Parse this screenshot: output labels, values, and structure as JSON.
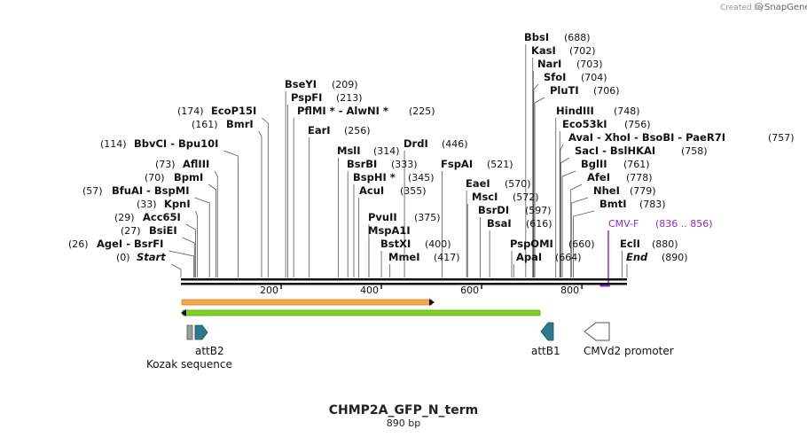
{
  "credit": {
    "text": "Created by",
    "brand": "SnapGene"
  },
  "title": "CHMP2A_GFP_N_term",
  "length_label": "890 bp",
  "total_bp": 890,
  "ticks": [
    "200",
    "400",
    "600",
    "800"
  ],
  "tick_values": [
    200,
    400,
    600,
    800
  ],
  "colors": {
    "primer": "#8e2ad0",
    "orange_feature": "#f7a74b",
    "green_feature": "#7ed321",
    "att": "#2b7a90"
  },
  "sites": [
    {
      "id": "bbsi",
      "name": "BbsI",
      "pos": "(688)",
      "bp": 688
    },
    {
      "id": "kasi",
      "name": "KasI",
      "pos": "(702)",
      "bp": 702
    },
    {
      "id": "nari",
      "name": "NarI",
      "pos": "(703)",
      "bp": 703
    },
    {
      "id": "sfoi",
      "name": "SfoI",
      "pos": "(704)",
      "bp": 704
    },
    {
      "id": "plutI",
      "name": "PluTI",
      "pos": "(706)",
      "bp": 706
    },
    {
      "id": "bseyi",
      "name": "BseYI",
      "pos": "(209)",
      "bp": 209
    },
    {
      "id": "pspfi",
      "name": "PspFI",
      "pos": "(213)",
      "bp": 213
    },
    {
      "id": "pflmi",
      "name": "PflMI *  -  AlwNI *",
      "pos": "(225)",
      "bp": 225
    },
    {
      "id": "hindiii",
      "name": "HindIII",
      "pos": "(748)",
      "bp": 748
    },
    {
      "id": "ecop15i",
      "name": "EcoP15I",
      "pos": "(174)",
      "bp": 174
    },
    {
      "id": "eco53ki",
      "name": "Eco53kI",
      "pos": "(756)",
      "bp": 756
    },
    {
      "id": "bmri",
      "name": "BmrI",
      "pos": "(161)",
      "bp": 161
    },
    {
      "id": "eari",
      "name": "EarI",
      "pos": "(256)",
      "bp": 256
    },
    {
      "id": "avai",
      "name": "AvaI  -  XhoI  -  BsoBI  -  PaeR7I",
      "pos": "(757)",
      "bp": 757
    },
    {
      "id": "bbvci",
      "name": "BbvCI  -  Bpu10I",
      "pos": "(114)",
      "bp": 114
    },
    {
      "id": "drdi",
      "name": "DrdI",
      "pos": "(446)",
      "bp": 446
    },
    {
      "id": "msli",
      "name": "MslI",
      "pos": "(314)",
      "bp": 314
    },
    {
      "id": "saci",
      "name": "SacI  -  BslHKAI",
      "pos": "(758)",
      "bp": 758
    },
    {
      "id": "afliii",
      "name": "AflIII",
      "pos": "(73)",
      "bp": 73
    },
    {
      "id": "bsrbi",
      "name": "BsrBI",
      "pos": "(333)",
      "bp": 333
    },
    {
      "id": "fspai",
      "name": "FspAI",
      "pos": "(521)",
      "bp": 521
    },
    {
      "id": "bglii",
      "name": "BglII",
      "pos": "(761)",
      "bp": 761
    },
    {
      "id": "bpmi",
      "name": "BpmI",
      "pos": "(70)",
      "bp": 70
    },
    {
      "id": "bsphi",
      "name": "BspHI *",
      "pos": "(345)",
      "bp": 345
    },
    {
      "id": "afei",
      "name": "AfeI",
      "pos": "(778)",
      "bp": 778
    },
    {
      "id": "bfuai",
      "name": "BfuAI  -  BspMI",
      "pos": "(57)",
      "bp": 57
    },
    {
      "id": "acui",
      "name": "AcuI",
      "pos": "(355)",
      "bp": 355
    },
    {
      "id": "eaei",
      "name": "EaeI",
      "pos": "(570)",
      "bp": 570
    },
    {
      "id": "nhei",
      "name": "NheI",
      "pos": "(779)",
      "bp": 779
    },
    {
      "id": "kpni",
      "name": "KpnI",
      "pos": "(33)",
      "bp": 33
    },
    {
      "id": "msci",
      "name": "MscI",
      "pos": "(572)",
      "bp": 572
    },
    {
      "id": "bmti",
      "name": "BmtI",
      "pos": "(783)",
      "bp": 783
    },
    {
      "id": "acc65i",
      "name": "Acc65I",
      "pos": "(29)",
      "bp": 29
    },
    {
      "id": "pvuii",
      "name": "PvuII",
      "pos": "(375)",
      "bp": 375
    },
    {
      "id": "bsrdi",
      "name": "BsrDI",
      "pos": "(597)",
      "bp": 597
    },
    {
      "id": "bsiei",
      "name": "BsiEI",
      "pos": "(27)",
      "bp": 27
    },
    {
      "id": "mspa1i",
      "name": "MspA1I",
      "pos": "",
      "bp": 375
    },
    {
      "id": "bsai",
      "name": "BsaI",
      "pos": "(616)",
      "bp": 616
    },
    {
      "id": "agei",
      "name": "AgeI  -  BsrFI",
      "pos": "(26)",
      "bp": 26
    },
    {
      "id": "bstxi",
      "name": "BstXI",
      "pos": "(400)",
      "bp": 400
    },
    {
      "id": "pspomi",
      "name": "PspOMI",
      "pos": "(660)",
      "bp": 660
    },
    {
      "id": "ecli",
      "name": "EclI",
      "pos": "(880)",
      "bp": 880
    },
    {
      "id": "start",
      "name": "Start",
      "pos": "(0)",
      "bp": 0
    },
    {
      "id": "mmei",
      "name": "MmeI",
      "pos": "(417)",
      "bp": 417
    },
    {
      "id": "apai",
      "name": "ApaI",
      "pos": "(664)",
      "bp": 664
    },
    {
      "id": "end",
      "name": "End",
      "pos": "(890)",
      "bp": 890
    }
  ],
  "primer": {
    "name": "CMV-F",
    "range": "(836 .. 856)",
    "start_bp": 836,
    "end_bp": 856
  },
  "features": {
    "orange": {
      "start_bp": 1,
      "end_bp": 505,
      "direction": "forward"
    },
    "green": {
      "start_bp": 1,
      "end_bp": 717,
      "direction": "reverse"
    },
    "kozak": {
      "label": "Kozak sequence",
      "start_bp": 12,
      "end_bp": 22
    },
    "attb2": {
      "label": "attB2",
      "start_bp": 25,
      "end_bp": 49
    },
    "attb1": {
      "label": "attB1",
      "start_bp": 717,
      "end_bp": 742
    },
    "cmvd2": {
      "label": "CMVd2 promoter",
      "start_bp": 808,
      "end_bp": 860
    }
  }
}
